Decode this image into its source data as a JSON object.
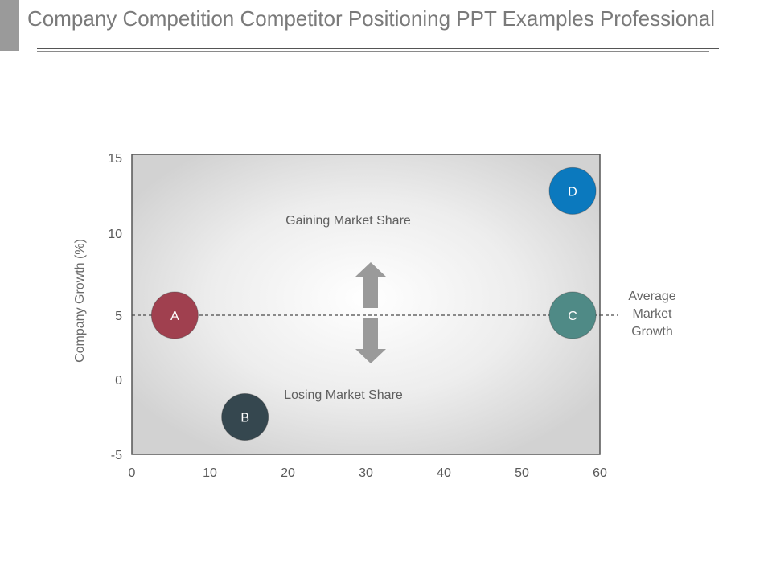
{
  "page": {
    "title": "Company Competition Competitor Positioning PPT Examples Professional"
  },
  "chart_data": {
    "type": "scatter",
    "title": "",
    "xlabel": "",
    "ylabel": "Company Growth (%)",
    "xlim": [
      0,
      60
    ],
    "ylim": [
      -5,
      15
    ],
    "xticks": [
      "0",
      "10",
      "20",
      "30",
      "40",
      "50",
      "60"
    ],
    "yticks": [
      "-5",
      "0",
      "5",
      "10",
      "15"
    ],
    "grid": false,
    "points": [
      {
        "label": "A",
        "x": 5.5,
        "y": 5,
        "color": "#a0404f"
      },
      {
        "label": "B",
        "x": 14.5,
        "y": -2.5,
        "color": "#35474f"
      },
      {
        "label": "C",
        "x": 56.5,
        "y": 5,
        "color": "#4f8a86"
      },
      {
        "label": "D",
        "x": 56.5,
        "y": 12.8,
        "color": "#0b79be"
      }
    ],
    "reference_line": {
      "y": 5,
      "label_lines": [
        "Average",
        "Market",
        "Growth"
      ]
    },
    "annotations": {
      "upper": "Gaining Market Share",
      "lower": "Losing Market Share"
    },
    "arrow_color": "#9a9a9a"
  }
}
